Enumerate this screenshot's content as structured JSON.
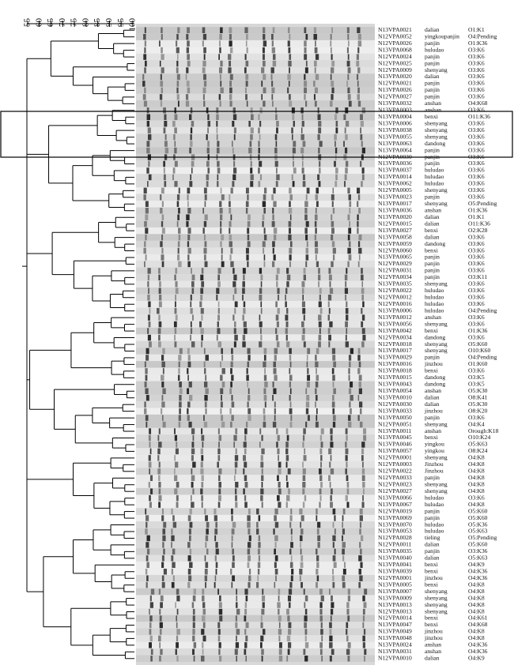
{
  "scale": {
    "ticks": [
      55,
      60,
      65,
      70,
      75,
      80,
      85,
      90,
      95,
      100
    ]
  },
  "rows": [
    {
      "id": "N13VPA0021",
      "location": "dalian",
      "serotype": "O1:K1"
    },
    {
      "id": "N12VPA0052",
      "location": "yingkoupanjin",
      "serotype": "O4:Pending"
    },
    {
      "id": "N12VPA0026",
      "location": "panjin",
      "serotype": "O1:K36"
    },
    {
      "id": "N13VPA0068",
      "location": "huludao",
      "serotype": "O3:K6"
    },
    {
      "id": "N12VPA0024",
      "location": "panjin",
      "serotype": "O3:K6"
    },
    {
      "id": "N12VPA0025",
      "location": "panjin",
      "serotype": "O3:K6"
    },
    {
      "id": "N12VPA0009",
      "location": "shenyang",
      "serotype": "O3:K6"
    },
    {
      "id": "N13VPA0020",
      "location": "dalian",
      "serotype": "O3:K6"
    },
    {
      "id": "N12VPA0021",
      "location": "panjin",
      "serotype": "O3:K6"
    },
    {
      "id": "N13VPA0026",
      "location": "panjin",
      "serotype": "O3:K6"
    },
    {
      "id": "N12VPA0027",
      "location": "panjin",
      "serotype": "O3:K6"
    },
    {
      "id": "N13VPA0032",
      "location": "anshan",
      "serotype": "O4:K68"
    },
    {
      "id": "N13VPA0003",
      "location": "anshan",
      "serotype": "O3:K6"
    },
    {
      "id": "N13VPA0004",
      "location": "benxi",
      "serotype": "O11:K36"
    },
    {
      "id": "N13VPA0006",
      "location": "shenyang",
      "serotype": "O3:K6"
    },
    {
      "id": "N13VPA0038",
      "location": "shenyang",
      "serotype": "O3:K6"
    },
    {
      "id": "N13VPA0055",
      "location": "shenyang",
      "serotype": "O3:K6"
    },
    {
      "id": "N13VPA0063",
      "location": "dandong",
      "serotype": "O3:K6"
    },
    {
      "id": "N13VPA0064",
      "location": "panjin",
      "serotype": "O3:K6"
    },
    {
      "id": "N12VPA0030",
      "location": "panjin",
      "serotype": "O3:K6"
    },
    {
      "id": "N13VPA0036",
      "location": "panjin",
      "serotype": "O3:K6"
    },
    {
      "id": "N13VPA0037",
      "location": "huludao",
      "serotype": "O3:K6"
    },
    {
      "id": "N13VPA0014",
      "location": "huludao",
      "serotype": "O3:K6"
    },
    {
      "id": "N13VPA0062",
      "location": "huludao",
      "serotype": "O3:K6"
    },
    {
      "id": "N12VPA0005",
      "location": "shenyang",
      "serotype": "O3:K6"
    },
    {
      "id": "N13VPA0023",
      "location": "panjin",
      "serotype": "O3:K6"
    },
    {
      "id": "N13VPA0017",
      "location": "shenyang",
      "serotype": "O5:Pending"
    },
    {
      "id": "N13VPA0036",
      "location": "anshan",
      "serotype": "O1:K36"
    },
    {
      "id": "N13VPA0020",
      "location": "dalian",
      "serotype": "O1:K1"
    },
    {
      "id": "N12VPA0015",
      "location": "dalian",
      "serotype": "O11:K36"
    },
    {
      "id": "N13VPA0027",
      "location": "benxi",
      "serotype": "O2:K28"
    },
    {
      "id": "N13VPA0058",
      "location": "dalian",
      "serotype": "O3:K6"
    },
    {
      "id": "N13VPA0059",
      "location": "dandong",
      "serotype": "O3:K6"
    },
    {
      "id": "N12VPA0060",
      "location": "benxi",
      "serotype": "O3:K6"
    },
    {
      "id": "N13VPA0065",
      "location": "panjin",
      "serotype": "O3:K6"
    },
    {
      "id": "N12VPA0029",
      "location": "panjin",
      "serotype": "O3:K6"
    },
    {
      "id": "N12VPA0031",
      "location": "panjin",
      "serotype": "O3:K6"
    },
    {
      "id": "N12VPA0034",
      "location": "panjin",
      "serotype": "O3:K11"
    },
    {
      "id": "N13VPA0035",
      "location": "shenyang",
      "serotype": "O3:K6"
    },
    {
      "id": "N12VPA0022",
      "location": "huludao",
      "serotype": "O3:K6"
    },
    {
      "id": "N12VPA0012",
      "location": "huludao",
      "serotype": "O3:K6"
    },
    {
      "id": "N12VPA0016",
      "location": "huludao",
      "serotype": "O3:K6"
    },
    {
      "id": "N13VPA0006",
      "location": "huludao",
      "serotype": "O4:Pending"
    },
    {
      "id": "N13VPA0012",
      "location": "anshan",
      "serotype": "O3:K6"
    },
    {
      "id": "N13VPA0056",
      "location": "shenyang",
      "serotype": "O3:K6"
    },
    {
      "id": "N13VPA0042",
      "location": "benxi",
      "serotype": "O1:K36"
    },
    {
      "id": "N12VPA0034",
      "location": "dandong",
      "serotype": "O3:K6"
    },
    {
      "id": "N12VPA0018",
      "location": "shenyang",
      "serotype": "O5:K60"
    },
    {
      "id": "N13VPA0017",
      "location": "shenyang",
      "serotype": "O10:K60"
    },
    {
      "id": "N13VPA0029",
      "location": "panjin",
      "serotype": "O4:Pending"
    },
    {
      "id": "N13VPA0016",
      "location": "jinzhou",
      "serotype": "O1:K60"
    },
    {
      "id": "N13VPA0018",
      "location": "benxi",
      "serotype": "O3:K6"
    },
    {
      "id": "N13VPA0015",
      "location": "dandong",
      "serotype": "O3:K5"
    },
    {
      "id": "N13VPA0043",
      "location": "dandong",
      "serotype": "O3:K5"
    },
    {
      "id": "N13VPA0054",
      "location": "anshan",
      "serotype": "O5:K30"
    },
    {
      "id": "N13VPA0010",
      "location": "dalian",
      "serotype": "O8:K41"
    },
    {
      "id": "N12VPA0030",
      "location": "dalian",
      "serotype": "O5:K30"
    },
    {
      "id": "N13VPA0033",
      "location": "jinzhou",
      "serotype": "O8:K20"
    },
    {
      "id": "N13VPA0050",
      "location": "panjin",
      "serotype": "O3:K6"
    },
    {
      "id": "N12VPA0051",
      "location": "shenyang",
      "serotype": "O4:K4"
    },
    {
      "id": "N13VPA0011",
      "location": "anshan",
      "serotype": "Orough:K18"
    },
    {
      "id": "N13VPA0045",
      "location": "benxi",
      "serotype": "O10:K24"
    },
    {
      "id": "N13VPA0046",
      "location": "yingkou",
      "serotype": "O5:K63"
    },
    {
      "id": "N13VPA0057",
      "location": "yingkou",
      "serotype": "O8:K24"
    },
    {
      "id": "N12VPA0001",
      "location": "shenyang",
      "serotype": "O4:K8"
    },
    {
      "id": "N12VPA0003",
      "location": "Jinzhou",
      "serotype": "O4:K8"
    },
    {
      "id": "N12VPA0022",
      "location": "Jinzhou",
      "serotype": "O4:K8"
    },
    {
      "id": "N12VPA0033",
      "location": "panjin",
      "serotype": "O4:K8"
    },
    {
      "id": "N12VPA0023",
      "location": "shenyang",
      "serotype": "O4:K8"
    },
    {
      "id": "N12VPA0027",
      "location": "shenyang",
      "serotype": "O4:K8"
    },
    {
      "id": "N13VPA0066",
      "location": "huludao",
      "serotype": "O3:K6"
    },
    {
      "id": "N13VPA0067",
      "location": "huludao",
      "serotype": "O4:K8"
    },
    {
      "id": "N12VPA0019",
      "location": "panjin",
      "serotype": "O5:K60"
    },
    {
      "id": "N13VPA0069",
      "location": "panjin",
      "serotype": "O5:K60"
    },
    {
      "id": "N13VPA0070",
      "location": "huludao",
      "serotype": "O5:K36"
    },
    {
      "id": "N13VPA0053",
      "location": "huludao",
      "serotype": "O5:K63"
    },
    {
      "id": "N12VPA0028",
      "location": "tieling",
      "serotype": "O5:Pending"
    },
    {
      "id": "N12VPA0011",
      "location": "dalian",
      "serotype": "O5:K60"
    },
    {
      "id": "N13VPA0035",
      "location": "panjin",
      "serotype": "O3:K36"
    },
    {
      "id": "N13VPA0040",
      "location": "dalian",
      "serotype": "O5:K63"
    },
    {
      "id": "N13VPA0041",
      "location": "benxi",
      "serotype": "O4:K9"
    },
    {
      "id": "N13VPA0039",
      "location": "benxi",
      "serotype": "O4:K36"
    },
    {
      "id": "N12VPA0001",
      "location": "jinzhou",
      "serotype": "O4:K36"
    },
    {
      "id": "N13VPA0005",
      "location": "benxi",
      "serotype": "O4:K8"
    },
    {
      "id": "N13VPA0007",
      "location": "shenyang",
      "serotype": "O4:K8"
    },
    {
      "id": "N13VPA0009",
      "location": "shenyang",
      "serotype": "O4:K8"
    },
    {
      "id": "N13VPA0013",
      "location": "shenyang",
      "serotype": "O4:K8"
    },
    {
      "id": "N12VPA0013",
      "location": "shenyang",
      "serotype": "O4:K8"
    },
    {
      "id": "N12VPA0014",
      "location": "benxi",
      "serotype": "O4:K61"
    },
    {
      "id": "N13VPA0047",
      "location": "benxi",
      "serotype": "O4:K68"
    },
    {
      "id": "N13VPA0049",
      "location": "jinzhou",
      "serotype": "O4:K8"
    },
    {
      "id": "N13VPA0048",
      "location": "jinzhou",
      "serotype": "O4:K8"
    },
    {
      "id": "N13VPA0024",
      "location": "anshan",
      "serotype": "O4:K36"
    },
    {
      "id": "N13VPA0031",
      "location": "anshan",
      "serotype": "O4:K36"
    },
    {
      "id": "N12VPA0010",
      "location": "dalian",
      "serotype": "O4:K9"
    }
  ]
}
